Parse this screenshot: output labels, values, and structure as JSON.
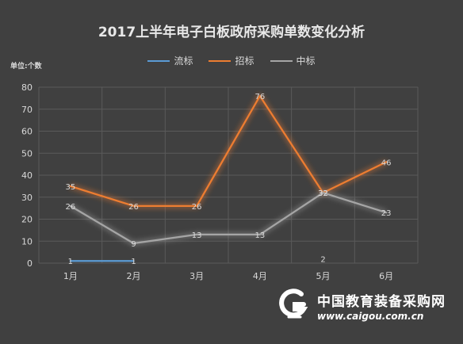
{
  "chart_data": {
    "type": "line",
    "title": "2017上半年电子白板政府采购单数变化分析",
    "unit_label": "单位:个数",
    "categories": [
      "1月",
      "2月",
      "3月",
      "4月",
      "5月",
      "6月"
    ],
    "ylim": [
      0,
      80
    ],
    "yticks": [
      0,
      10,
      20,
      30,
      40,
      50,
      60,
      70,
      80
    ],
    "grid": true,
    "legend_position": "top",
    "series": [
      {
        "name": "流标",
        "color": "#5b9bd5",
        "values": [
          1,
          1,
          null,
          null,
          2,
          null
        ]
      },
      {
        "name": "招标",
        "color": "#ed7d31",
        "values": [
          35,
          26,
          26,
          76,
          32,
          46
        ]
      },
      {
        "name": "中标",
        "color": "#a5a5a5",
        "values": [
          26,
          9,
          13,
          13,
          32,
          23
        ]
      }
    ]
  },
  "watermark": {
    "name": "中国教育装备采购网",
    "url": "www.caigou.com.cn"
  },
  "colors": {
    "background": "#404040",
    "grid": "#5a5a5a",
    "text": "#d9d9d9"
  }
}
